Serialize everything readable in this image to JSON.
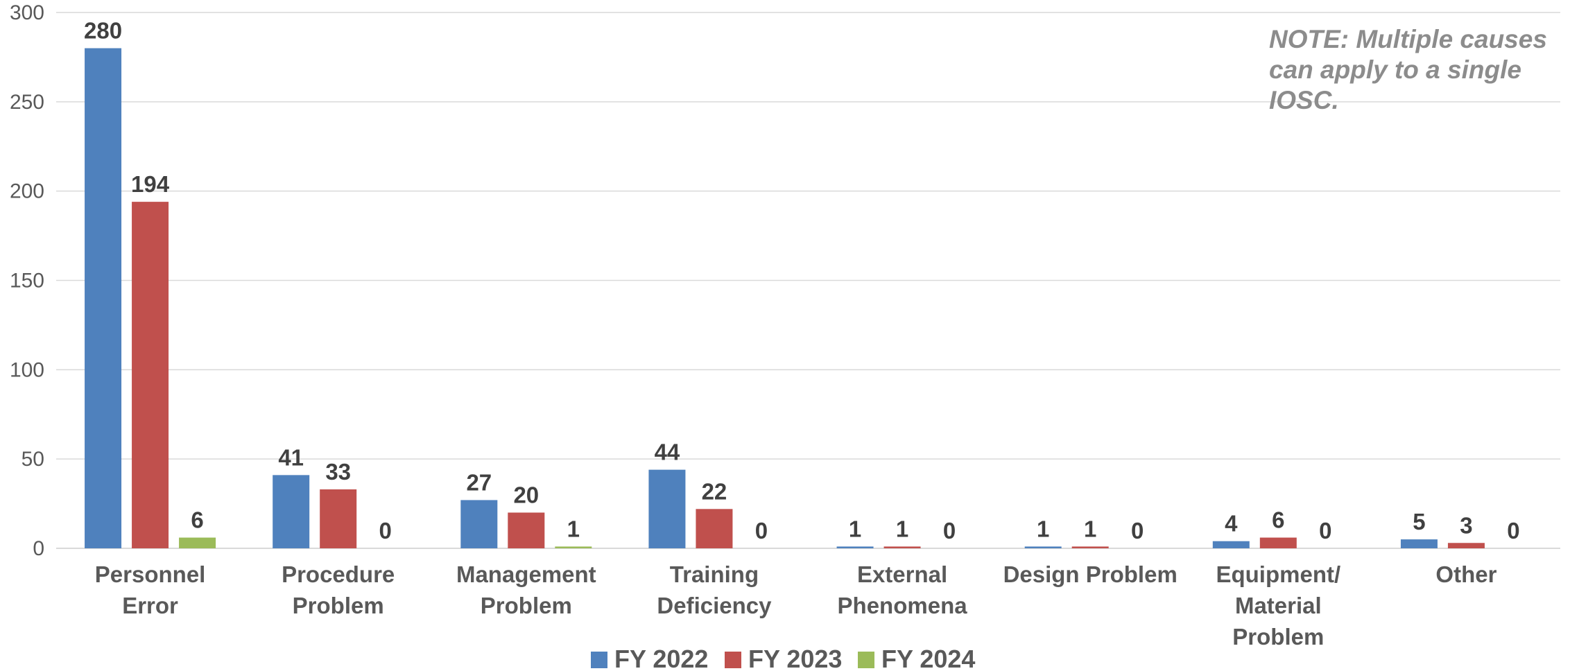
{
  "chart_data": {
    "type": "bar",
    "categories": [
      [
        "Personnel",
        "Error"
      ],
      [
        "Procedure",
        "Problem"
      ],
      [
        "Management",
        "Problem"
      ],
      [
        "Training",
        "Deficiency"
      ],
      [
        "External",
        "Phenomena"
      ],
      [
        "Design Problem"
      ],
      [
        "Equipment/",
        "Material",
        "Problem"
      ],
      [
        "Other"
      ]
    ],
    "series": [
      {
        "name": "FY 2022",
        "color": "#4f81bd",
        "values": [
          280,
          41,
          27,
          44,
          1,
          1,
          4,
          5
        ]
      },
      {
        "name": "FY 2023",
        "color": "#c0504d",
        "values": [
          194,
          33,
          20,
          22,
          1,
          1,
          6,
          3
        ]
      },
      {
        "name": "FY 2024",
        "color": "#9bbb59",
        "values": [
          6,
          0,
          1,
          0,
          0,
          0,
          0,
          0
        ]
      }
    ],
    "ylim": [
      0,
      300
    ],
    "yticks": [
      0,
      50,
      100,
      150,
      200,
      250,
      300
    ],
    "grid": true,
    "legend_position": "bottom",
    "annotation": [
      "NOTE:  Multiple causes",
      "can apply to a single",
      "IOSC."
    ]
  }
}
